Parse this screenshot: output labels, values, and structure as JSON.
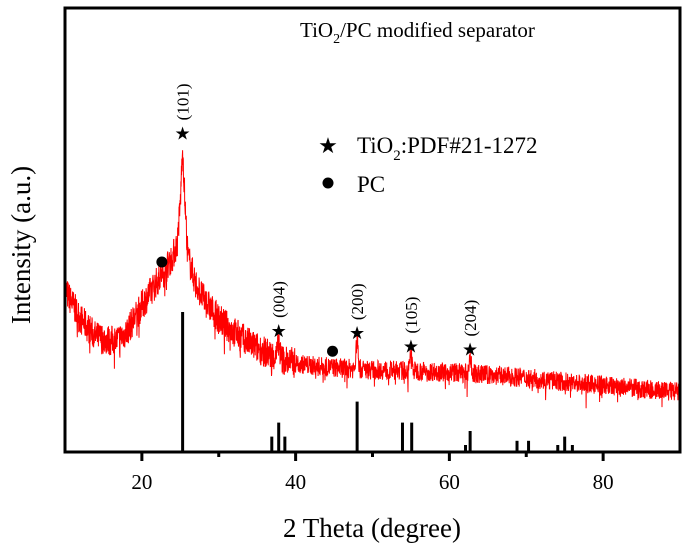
{
  "chart_data": {
    "type": "line",
    "title": "TiO2/PC modified separator",
    "title_parts": {
      "pre": "TiO",
      "sub": "2",
      "post": "/PC  modified separator"
    },
    "xlabel": "2 Theta (degree)",
    "ylabel": "Intensity (a.u.)",
    "xlim": [
      10,
      90
    ],
    "ylim": [
      0,
      100
    ],
    "xticks": [
      20,
      40,
      60,
      80
    ],
    "xtick_labels": [
      "20",
      "40",
      "60",
      "80"
    ],
    "minor_xticks": [
      30,
      50,
      70
    ],
    "series": [
      {
        "name": "TiO2/PC modified separator",
        "color": "#ff0000",
        "profile_x": [
          10,
          12,
          14,
          16,
          17,
          18,
          20,
          22,
          23,
          24,
          24.6,
          25.0,
          25.3,
          25.6,
          26,
          27,
          28,
          30,
          32,
          34,
          36,
          38,
          40,
          42,
          45,
          50,
          55,
          60,
          65,
          70,
          75,
          80,
          85,
          90
        ],
        "profile_y": [
          36.5,
          30,
          26,
          25,
          25.5,
          27,
          33,
          38.5,
          41,
          44,
          47,
          56,
          69,
          56,
          44,
          38,
          34.5,
          30,
          27,
          24.5,
          22.5,
          21,
          20,
          19.5,
          19,
          18.5,
          18.3,
          18,
          17.4,
          16.7,
          15.8,
          15,
          14.2,
          13.5
        ],
        "peaks": [
          {
            "x": 37.8,
            "height": 4
          },
          {
            "x": 48.0,
            "height": 7
          },
          {
            "x": 55.0,
            "height": 4
          },
          {
            "x": 62.7,
            "height": 4
          }
        ]
      }
    ],
    "reference_pattern": {
      "name": "TiO2:PDF#21-1272",
      "color": "#000000",
      "x": [
        25.3,
        36.9,
        37.8,
        38.6,
        48.0,
        53.9,
        55.1,
        62.1,
        62.7,
        68.8,
        70.3,
        74.1,
        75.0,
        76.0
      ],
      "relative_intensity": [
        100,
        11,
        21,
        11,
        36,
        21,
        21,
        5,
        15,
        8,
        8,
        5,
        11,
        5
      ]
    },
    "peak_markers": [
      {
        "symbol": "star",
        "x": 25.3,
        "y": 72,
        "label": "(101)"
      },
      {
        "symbol": "star",
        "x": 37.8,
        "y": 27.5,
        "label": "(004)"
      },
      {
        "symbol": "star",
        "x": 48.0,
        "y": 27,
        "label": "(200)"
      },
      {
        "symbol": "star",
        "x": 55.0,
        "y": 24,
        "label": "(105)"
      },
      {
        "symbol": "star",
        "x": 62.7,
        "y": 23.3,
        "label": "(204)"
      },
      {
        "symbol": "dot",
        "x": 22.6,
        "y": 42.8
      },
      {
        "symbol": "dot",
        "x": 44.8,
        "y": 22.7
      }
    ],
    "legend": {
      "placement": "top-right",
      "entries": [
        {
          "symbol": "star",
          "pre": "TiO",
          "sub": "2",
          "post": ":PDF#21-1272"
        },
        {
          "symbol": "dot",
          "label": "PC"
        }
      ]
    },
    "grid": false
  }
}
